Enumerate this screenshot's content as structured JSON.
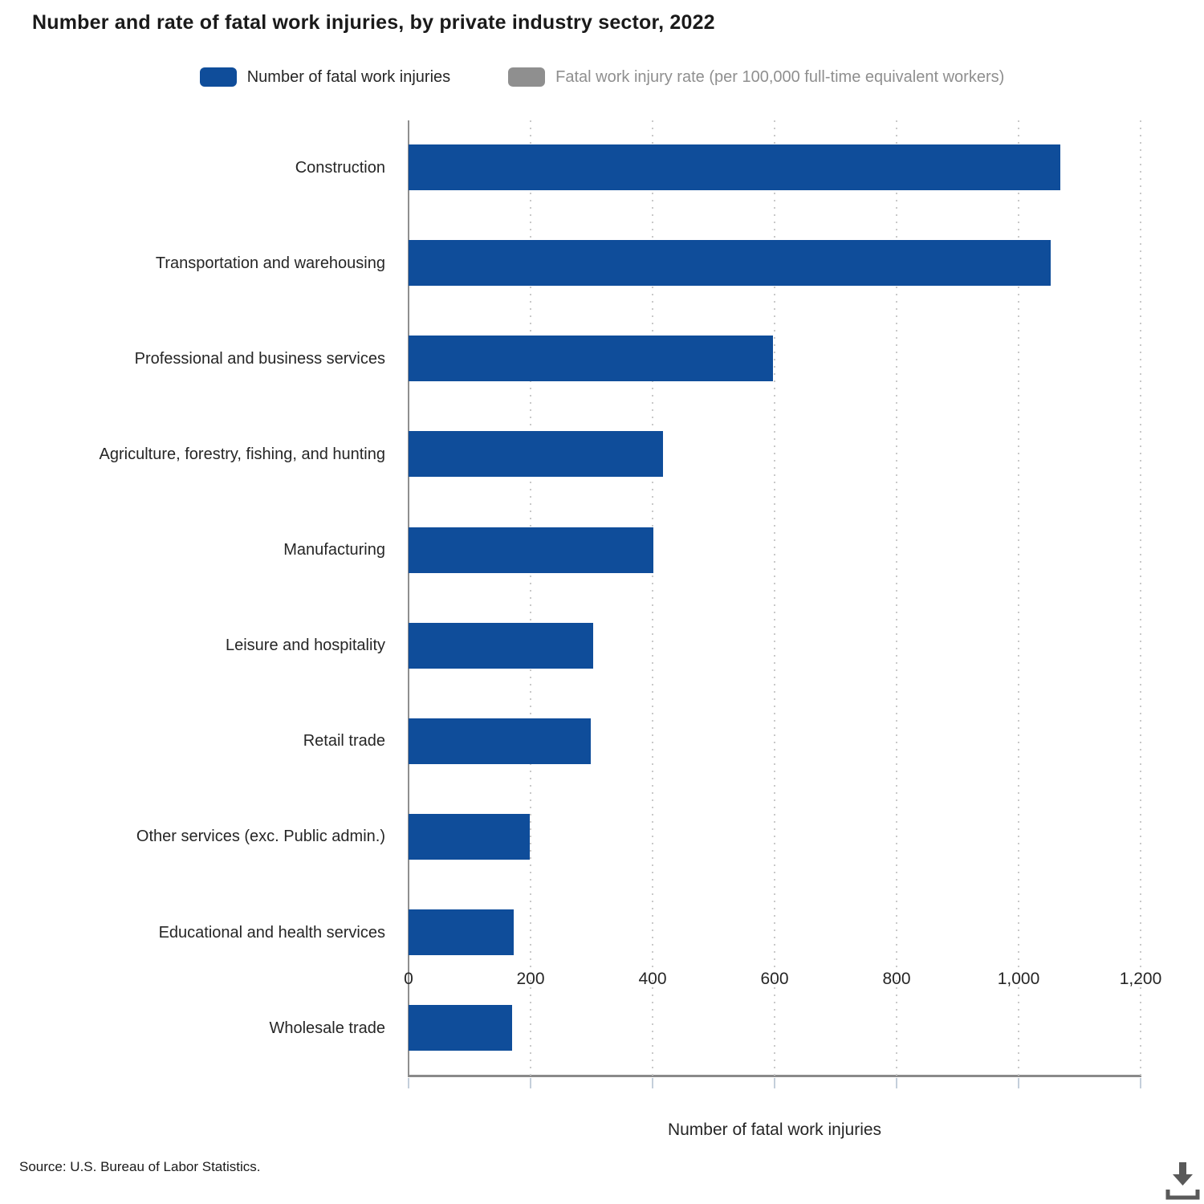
{
  "title": "Number and rate of fatal work injuries, by private industry sector, 2022",
  "legend": [
    {
      "label": "Number of fatal work injuries",
      "color": "#0F4D9A",
      "active": true
    },
    {
      "label": "Fatal work injury rate (per 100,000 full-time equivalent workers)",
      "color": "#8F8F8F",
      "active": false
    }
  ],
  "chart_data": {
    "type": "bar",
    "orientation": "horizontal",
    "title": "Number and rate of fatal work injuries, by private industry sector, 2022",
    "categories": [
      "Construction",
      "Transportation and warehousing",
      "Professional and business services",
      "Agriculture, forestry, fishing, and hunting",
      "Manufacturing",
      "Leisure and hospitality",
      "Retail trade",
      "Other services (exc. Public admin.)",
      "Educational and health services",
      "Wholesale trade"
    ],
    "series": [
      {
        "name": "Number of fatal work injuries",
        "color": "#0F4D9A",
        "visible": true,
        "values": [
          1069,
          1053,
          598,
          417,
          401,
          303,
          299,
          199,
          172,
          170
        ]
      },
      {
        "name": "Fatal work injury rate (per 100,000 full-time equivalent workers)",
        "color": "#8F8F8F",
        "visible": false
      }
    ],
    "xlabel": "Number of fatal work injuries",
    "xlim": [
      0,
      1200
    ],
    "xticks": [
      0,
      200,
      400,
      600,
      800,
      1000,
      1200
    ],
    "xtick_labels": [
      "0",
      "200",
      "400",
      "600",
      "800",
      "1,000",
      "1,200"
    ],
    "grid": "vertical-dotted",
    "legend_position": "top"
  },
  "source": "Source: U.S. Bureau of Labor Statistics.",
  "icons": {
    "download": "download-icon"
  },
  "colors": {
    "bar_blue": "#0F4D9A",
    "rate_gray": "#8F8F8F",
    "axis_line": "#8A8A8A",
    "tick_mark": "#C4CFDB",
    "gridline": "#C9C9C9",
    "text_dark": "#262626",
    "icon_gray": "#595959"
  }
}
